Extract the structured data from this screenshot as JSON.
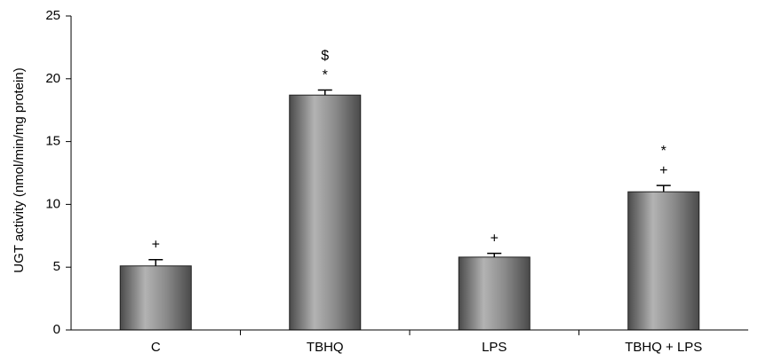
{
  "chart_data": {
    "type": "bar",
    "title": "",
    "xlabel": "",
    "ylabel": "UGT activity (nmol/min/mg protein)",
    "ylim": [
      0,
      25
    ],
    "yticks": [
      0,
      5,
      10,
      15,
      20,
      25
    ],
    "categories": [
      "C",
      "TBHQ",
      "LPS",
      "TBHQ + LPS"
    ],
    "values": [
      5.1,
      18.7,
      5.8,
      11.0
    ],
    "errors": [
      0.5,
      0.4,
      0.3,
      0.5
    ],
    "annotations": [
      [
        "+"
      ],
      [
        "*",
        "$"
      ],
      [
        "+"
      ],
      [
        "+",
        "*"
      ]
    ],
    "legend": "none",
    "grid": false,
    "colors": {
      "bar": "#8a8a8a",
      "bar_dark": "#4a4a4a",
      "bar_light": "#b3b3b3"
    }
  }
}
